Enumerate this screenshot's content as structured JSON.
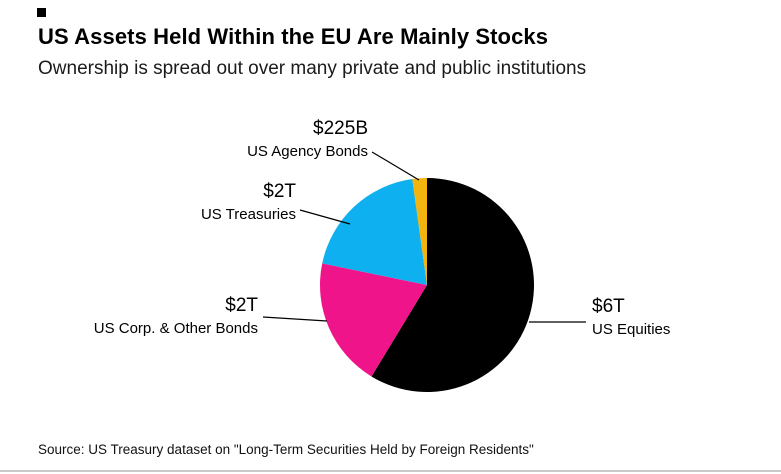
{
  "header": {
    "title": "US Assets Held Within the EU Are Mainly Stocks",
    "subtitle": "Ownership is spread out over many private and public institutions"
  },
  "source": "Source: US Treasury dataset on \"Long-Term Securities Held by Foreign Residents\"",
  "chart_data": {
    "type": "pie",
    "title": "US Assets Held Within the EU Are Mainly Stocks",
    "subtitle": "Ownership is spread out over many private and public institutions",
    "unit": "USD billions",
    "start_angle_deg": -90,
    "direction": "clockwise",
    "legend_position": "callout-labels",
    "slices": [
      {
        "label": "US Equities",
        "value_label": "$6T",
        "value": 6000,
        "color": "#000000"
      },
      {
        "label": "US Corp. & Other Bonds",
        "value_label": "$2T",
        "value": 2000,
        "color": "#f0148b"
      },
      {
        "label": "US Treasuries",
        "value_label": "$2T",
        "value": 2000,
        "color": "#0fb0f0"
      },
      {
        "label": "US Agency Bonds",
        "value_label": "$225B",
        "value": 225,
        "color": "#f3b40f"
      }
    ]
  }
}
